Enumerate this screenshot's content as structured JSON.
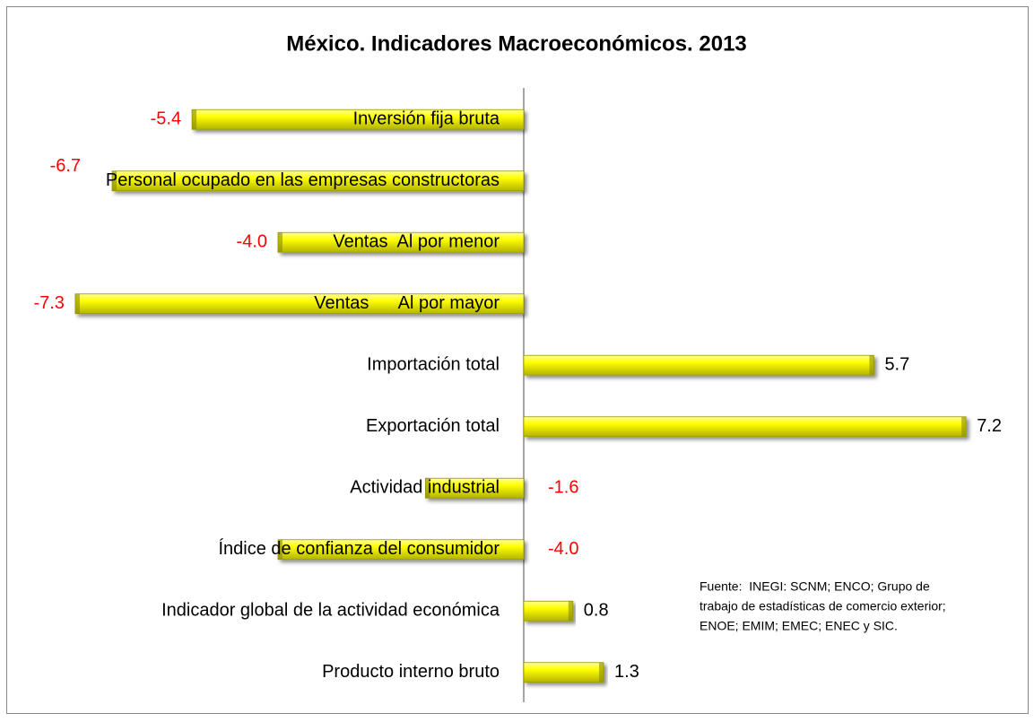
{
  "chart_data": {
    "type": "bar",
    "orientation": "horizontal",
    "title": "México. Indicadores Macroeconómicos. 2013",
    "categories": [
      "Inversión fija bruta",
      "Personal ocupado en las empresas constructoras",
      "Ventas  Al por menor",
      "Ventas      Al por mayor",
      "Importación total",
      "Exportación total",
      "Actividad industrial",
      "Índice de confianza del consumidor",
      "Indicador global de la actividad económica",
      "Producto interno bruto"
    ],
    "values": [
      -5.4,
      -6.7,
      -4.0,
      -7.3,
      5.7,
      7.2,
      -1.6,
      -4.0,
      0.8,
      1.3
    ],
    "value_labels": [
      "-5.4",
      "-6.7",
      "-4.0",
      "-7.3",
      "5.7",
      "7.2",
      "-1.6",
      "-4.0",
      "0.8",
      "1.3"
    ],
    "color": "#ffff00",
    "negative_label_color": "#ff0000",
    "positive_label_color": "#000000",
    "xlim": [
      -8,
      8
    ],
    "annotation": [
      "Fuente:  INEGI: SCNM; ENCO; Grupo de",
      "trabajo de estadísticas de comercio exterior;",
      "ENOE; EMIM; EMEC; ENEC y SIC."
    ]
  }
}
